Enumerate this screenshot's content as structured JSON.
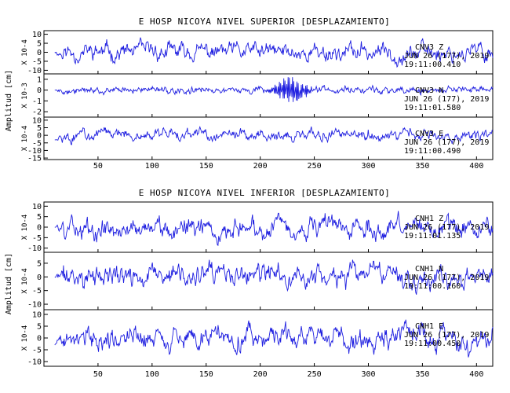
{
  "colors": {
    "trace": "#1f1fe0",
    "axis": "#000000",
    "background": "#ffffff"
  },
  "chart_data": [
    {
      "type": "line",
      "title": "E HOSP NICOYA NIVEL SUPERIOR [DESPLAZAMIENTO]",
      "ylabel": "Amplitud [cm]",
      "x_ticks": [
        50,
        100,
        150,
        200,
        250,
        300,
        350,
        400
      ],
      "xlim": [
        0,
        415
      ],
      "show_x_tick_labels": true,
      "panels": [
        {
          "scale_label": "X 10-4",
          "y_ticks": [
            "10",
            "5",
            "0",
            "-5",
            "-10"
          ],
          "y_tick_values": [
            10,
            5,
            0,
            -5,
            -10
          ],
          "ylim": [
            -12,
            12
          ],
          "component": "CNV3 Z",
          "date": "JUN 26 (177), 2019",
          "time": "19:11:00.410",
          "series": [
            {
              "seed": 11,
              "amp": 9.0,
              "burst": 0
            }
          ]
        },
        {
          "scale_label": "X 10-3",
          "y_ticks": [
            "1",
            "0",
            "-1",
            "-2"
          ],
          "y_tick_values": [
            1,
            0,
            -1,
            -2
          ],
          "ylim": [
            -2.5,
            1.5
          ],
          "component": "CNV3 N",
          "date": "JUN 26 (177), 2019",
          "time": "19:11:01.580",
          "series": [
            {
              "seed": 27,
              "amp": 0.6,
              "burst": 1
            }
          ]
        },
        {
          "scale_label": "X 10-4",
          "y_ticks": [
            "10",
            "5",
            "0",
            "-5",
            "-10",
            "-15"
          ],
          "y_tick_values": [
            10,
            5,
            0,
            -5,
            -10,
            -15
          ],
          "ylim": [
            -16,
            12
          ],
          "component": "CNV3 E",
          "date": "JUN 26 (177), 2019",
          "time": "19:11:00.490",
          "series": [
            {
              "seed": 43,
              "amp": 7.0,
              "burst": 0
            }
          ]
        }
      ]
    },
    {
      "type": "line",
      "title": "E HOSP NICOYA NIVEL INFERIOR [DESPLAZAMIENTO]",
      "ylabel": "Amplitud [cm]",
      "x_ticks": [
        50,
        100,
        150,
        200,
        250,
        300,
        350,
        400
      ],
      "xlim": [
        0,
        415
      ],
      "show_x_tick_labels": true,
      "panels": [
        {
          "scale_label": "X 10-4",
          "y_ticks": [
            "10",
            "5",
            "0",
            "-5",
            "-10"
          ],
          "y_tick_values": [
            10,
            5,
            0,
            -5,
            -10
          ],
          "ylim": [
            -12,
            12
          ],
          "component": "CNH1 Z",
          "date": "JUN 26 (177), 2019",
          "time": "19:11:01.135",
          "series": [
            {
              "seed": 59,
              "amp": 9.0,
              "burst": 0
            }
          ]
        },
        {
          "scale_label": "X 10-4",
          "y_ticks": [
            "5",
            "0",
            "-5",
            "-10"
          ],
          "y_tick_values": [
            5,
            0,
            -5,
            -10
          ],
          "ylim": [
            -12,
            9
          ],
          "component": "CNH1 N",
          "date": "JUN 26 (177), 2019",
          "time": "19:11:00.160",
          "series": [
            {
              "seed": 71,
              "amp": 7.5,
              "burst": 0
            }
          ]
        },
        {
          "scale_label": "X 10-4",
          "y_ticks": [
            "10",
            "5",
            "0",
            "-5",
            "-10"
          ],
          "y_tick_values": [
            10,
            5,
            0,
            -5,
            -10
          ],
          "ylim": [
            -12,
            12
          ],
          "component": "CNH1 E",
          "date": "JUN 26 (177), 2019",
          "time": "19:11:00.450",
          "series": [
            {
              "seed": 89,
              "amp": 9.0,
              "burst": 0
            }
          ]
        }
      ]
    }
  ]
}
